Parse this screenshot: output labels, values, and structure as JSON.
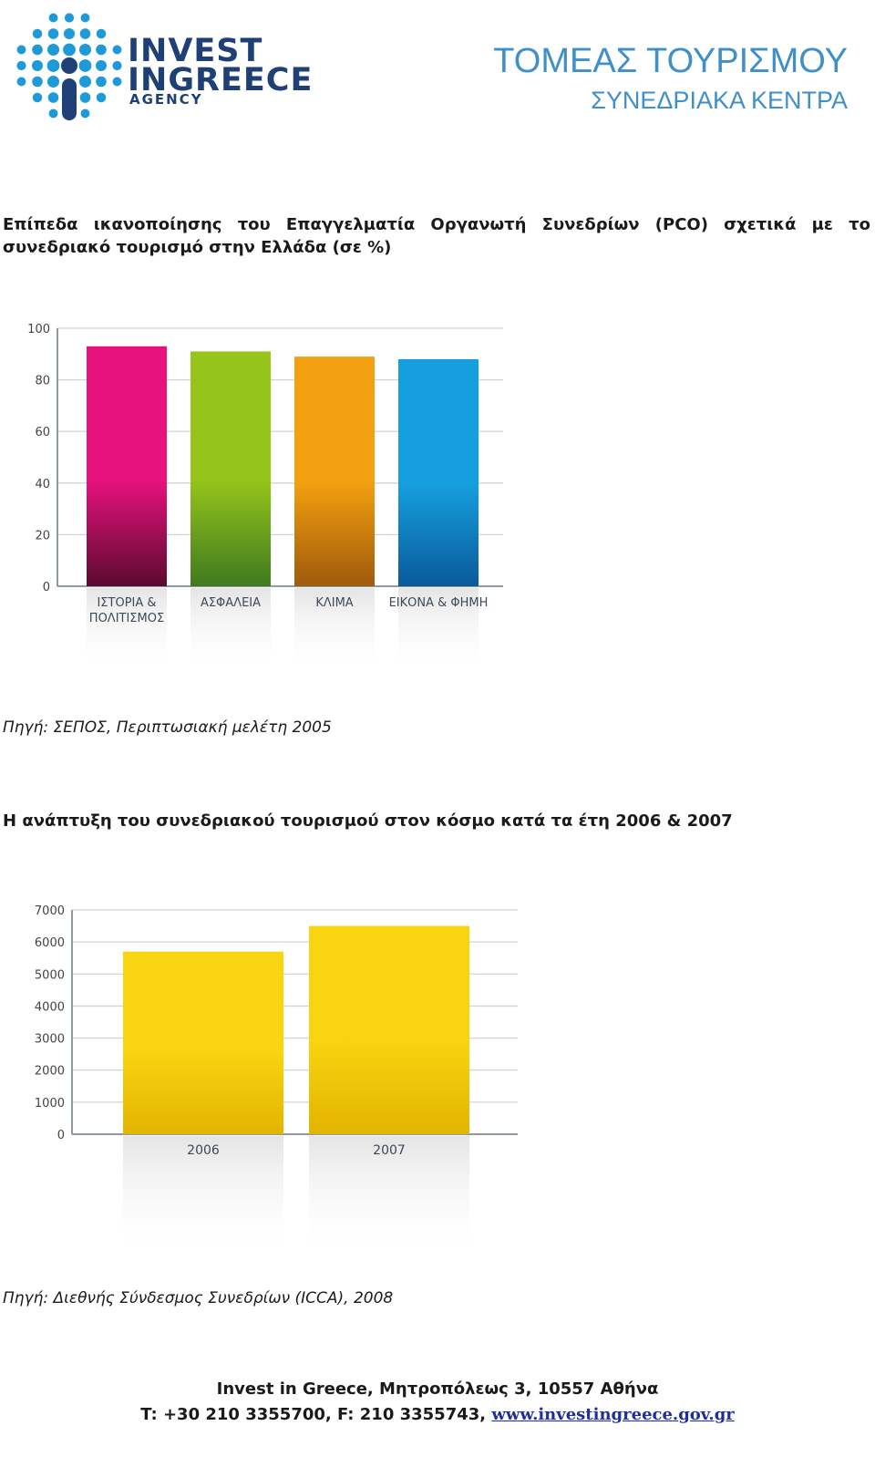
{
  "header": {
    "logo": {
      "line1": "INVEST",
      "line2": "INGREECE",
      "line3": "AGENCY",
      "colors": {
        "dots": "#1f9ad9",
        "text": "#1f3f77",
        "stem": "#1f3f77"
      }
    },
    "sector_title": "ΤΟΜΕΑΣ ΤΟΥΡΙΣΜΟΥ",
    "sector_subtitle": "ΣΥΝΕΔΡΙΑΚΑ ΚΕΝΤΡΑ"
  },
  "section1": {
    "heading": "Επίπεδα ικανοποίησης του Επαγγελματία Οργανωτή Συνεδρίων (PCO) σχετικά με το συνεδριακό τουρισμό στην Ελλάδα (σε %)",
    "source": "Πηγή: ΣΕΠΟΣ, Περιπτωσιακή μελέτη 2005"
  },
  "section2": {
    "heading": "Η ανάπτυξη του συνεδριακού τουρισμού στον κόσμο κατά τα έτη 2006 & 2007",
    "source": "Πηγή: Διεθνής Σύνδεσμος Συνεδρίων (ICCA), 2008"
  },
  "footer": {
    "line1": "Invest in Greece, Μητροπόλεως 3, 10557 Αθήνα",
    "line2_prefix": "T: +30 210 3355700, F: 210 3355743, ",
    "link": "www.investingreece.gov.gr"
  },
  "chart_data": [
    {
      "type": "bar",
      "categories": [
        [
          "ΙΣΤΟΡΙΑ &",
          "ΠΟΛΙΤΙΣΜΟΣ"
        ],
        [
          "ΑΣΦΑΛΕΙΑ"
        ],
        [
          "ΚΛΙΜΑ"
        ],
        [
          "ΕΙΚΟΝΑ & ΦΗΜΗ"
        ]
      ],
      "values": [
        93,
        91,
        89,
        88
      ],
      "ylim": [
        0,
        100
      ],
      "yticks": [
        0,
        20,
        40,
        60,
        80,
        100
      ],
      "grid": true,
      "colors": [
        [
          "#e8127f",
          "#5c0a2e"
        ],
        [
          "#95c41a",
          "#3f7a1f"
        ],
        [
          "#f2a00f",
          "#a05a0c"
        ],
        [
          "#169fde",
          "#0a5a9a"
        ]
      ]
    },
    {
      "type": "bar",
      "categories": [
        [
          "2006"
        ],
        [
          "2007"
        ]
      ],
      "values": [
        5700,
        6500
      ],
      "ylim": [
        0,
        7000
      ],
      "yticks": [
        0,
        1000,
        2000,
        3000,
        4000,
        5000,
        6000,
        7000
      ],
      "grid": true,
      "colors": [
        [
          "#f9d410",
          "#e2b400"
        ],
        [
          "#f9d410",
          "#e2b400"
        ]
      ]
    }
  ]
}
